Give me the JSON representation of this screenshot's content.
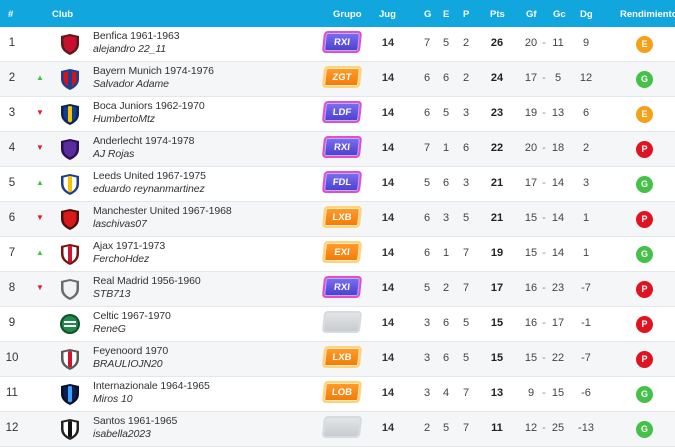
{
  "header": {
    "rank": "#",
    "club": "Club",
    "group": "Grupo",
    "played": "Jug",
    "won": "G",
    "drawn": "E",
    "lost": "P",
    "points": "Pts",
    "goals_for": "Gf",
    "goals_against": "Gc",
    "goal_diff": "Dg",
    "performance": "Rendimiento"
  },
  "colors": {
    "header_bg": "#12a6de",
    "trend_up": "#45c14a",
    "trend_down": "#e11b2a",
    "perf_E": "#f5a019",
    "perf_G": "#45c14a",
    "perf_P": "#e01321"
  },
  "rows": [
    {
      "rank": "1",
      "trend": "",
      "club": "Benfica 1961-1963",
      "user": "alejandro 22_11",
      "group": "RXI",
      "group_color": "purple",
      "crest": "benfica-crest-icon",
      "jug": "14",
      "g": "7",
      "e": "5",
      "p": "2",
      "pts": "26",
      "gf": "20",
      "dash": "-",
      "gc": "11",
      "dg": "9",
      "rend": "E"
    },
    {
      "rank": "2",
      "trend": "up",
      "club": "Bayern Munich 1974-1976",
      "user": "Salvador Adame",
      "group": "ZGT",
      "group_color": "orange",
      "crest": "bayern-crest-icon",
      "jug": "14",
      "g": "6",
      "e": "6",
      "p": "2",
      "pts": "24",
      "gf": "17",
      "dash": "-",
      "gc": "5",
      "dg": "12",
      "rend": "G"
    },
    {
      "rank": "3",
      "trend": "down",
      "club": "Boca Juniors 1962-1970",
      "user": "HumbertoMtz",
      "group": "LDF",
      "group_color": "purple",
      "crest": "boca-crest-icon",
      "jug": "14",
      "g": "6",
      "e": "5",
      "p": "3",
      "pts": "23",
      "gf": "19",
      "dash": "-",
      "gc": "13",
      "dg": "6",
      "rend": "E"
    },
    {
      "rank": "4",
      "trend": "down",
      "club": "Anderlecht 1974-1978",
      "user": "AJ Rojas",
      "group": "RXI",
      "group_color": "purple",
      "crest": "anderlecht-crest-icon",
      "jug": "14",
      "g": "7",
      "e": "1",
      "p": "6",
      "pts": "22",
      "gf": "20",
      "dash": "-",
      "gc": "18",
      "dg": "2",
      "rend": "P"
    },
    {
      "rank": "5",
      "trend": "up",
      "club": "Leeds United 1967-1975",
      "user": "eduardo reynanmartinez",
      "group": "FDL",
      "group_color": "purple",
      "crest": "leeds-crest-icon",
      "jug": "14",
      "g": "5",
      "e": "6",
      "p": "3",
      "pts": "21",
      "gf": "17",
      "dash": "-",
      "gc": "14",
      "dg": "3",
      "rend": "G"
    },
    {
      "rank": "6",
      "trend": "down",
      "club": "Manchester United 1967-1968",
      "user": "laschivas07",
      "group": "LXB",
      "group_color": "orange",
      "crest": "manutd-crest-icon",
      "jug": "14",
      "g": "6",
      "e": "3",
      "p": "5",
      "pts": "21",
      "gf": "15",
      "dash": "-",
      "gc": "14",
      "dg": "1",
      "rend": "P"
    },
    {
      "rank": "7",
      "trend": "up",
      "club": "Ajax 1971-1973",
      "user": "FerchoHdez",
      "group": "EXI",
      "group_color": "orange",
      "crest": "ajax-crest-icon",
      "jug": "14",
      "g": "6",
      "e": "1",
      "p": "7",
      "pts": "19",
      "gf": "15",
      "dash": "-",
      "gc": "14",
      "dg": "1",
      "rend": "G"
    },
    {
      "rank": "8",
      "trend": "down",
      "club": "Real Madrid 1956-1960",
      "user": "STB713",
      "group": "RXI",
      "group_color": "purple",
      "crest": "realmadrid-crest-icon",
      "jug": "14",
      "g": "5",
      "e": "2",
      "p": "7",
      "pts": "17",
      "gf": "16",
      "dash": "-",
      "gc": "23",
      "dg": "-7",
      "rend": "P"
    },
    {
      "rank": "9",
      "trend": "",
      "club": "Celtic 1967-1970",
      "user": "ReneG",
      "group": "",
      "group_color": "grey",
      "crest": "celtic-crest-icon",
      "jug": "14",
      "g": "3",
      "e": "6",
      "p": "5",
      "pts": "15",
      "gf": "16",
      "dash": "-",
      "gc": "17",
      "dg": "-1",
      "rend": "P"
    },
    {
      "rank": "10",
      "trend": "",
      "club": "Feyenoord 1970",
      "user": "BRAULIOJN20",
      "group": "LXB",
      "group_color": "orange",
      "crest": "feyenoord-crest-icon",
      "jug": "14",
      "g": "3",
      "e": "6",
      "p": "5",
      "pts": "15",
      "gf": "15",
      "dash": "-",
      "gc": "22",
      "dg": "-7",
      "rend": "P"
    },
    {
      "rank": "11",
      "trend": "",
      "club": "Internazionale 1964-1965",
      "user": "Miros 10",
      "group": "LOB",
      "group_color": "orange",
      "crest": "inter-crest-icon",
      "jug": "14",
      "g": "3",
      "e": "4",
      "p": "7",
      "pts": "13",
      "gf": "9",
      "dash": "-",
      "gc": "15",
      "dg": "-6",
      "rend": "G"
    },
    {
      "rank": "12",
      "trend": "",
      "club": "Santos 1961-1965",
      "user": "isabella2023",
      "group": "",
      "group_color": "grey",
      "crest": "santos-crest-icon",
      "jug": "14",
      "g": "2",
      "e": "5",
      "p": "7",
      "pts": "11",
      "gf": "12",
      "dash": "-",
      "gc": "25",
      "dg": "-13",
      "rend": "G"
    }
  ]
}
